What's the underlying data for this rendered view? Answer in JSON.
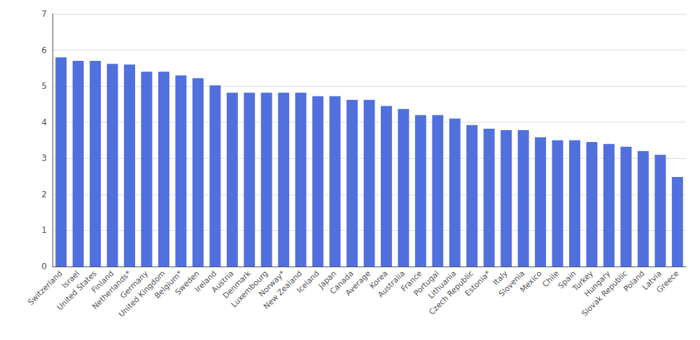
{
  "chart_data": {
    "type": "bar",
    "categories": [
      "Switzerland",
      "Israel",
      "United States",
      "Finland",
      "Netherlands*",
      "Germany",
      "United Kingdom",
      "Belgium*",
      "Sweden",
      "Ireland",
      "Austria",
      "Denmark",
      "Luxembourg",
      "Norway*",
      "New Zealand",
      "Iceland",
      "Japan",
      "Canada",
      "Average",
      "Korea",
      "Australia",
      "France",
      "Portugal",
      "Lithuania",
      "Czech Republic",
      "Estonia*",
      "Italy",
      "Slovenia",
      "Mexico",
      "Chile",
      "Spain",
      "Turkey",
      "Hungary",
      "Slovak Republic",
      "Poland",
      "Latvia",
      "Greece"
    ],
    "values": [
      5.8,
      5.7,
      5.7,
      5.62,
      5.6,
      5.4,
      5.4,
      5.3,
      5.22,
      5.02,
      4.82,
      4.82,
      4.82,
      4.82,
      4.82,
      4.72,
      4.72,
      4.62,
      4.62,
      4.45,
      4.37,
      4.2,
      4.2,
      4.1,
      3.92,
      3.82,
      3.78,
      3.78,
      3.58,
      3.5,
      3.5,
      3.45,
      3.4,
      3.32,
      3.2,
      3.1,
      2.48
    ],
    "ylim": [
      0,
      7
    ],
    "yticks": [
      0,
      1,
      2,
      3,
      4,
      5,
      6,
      7
    ],
    "grid": true
  }
}
